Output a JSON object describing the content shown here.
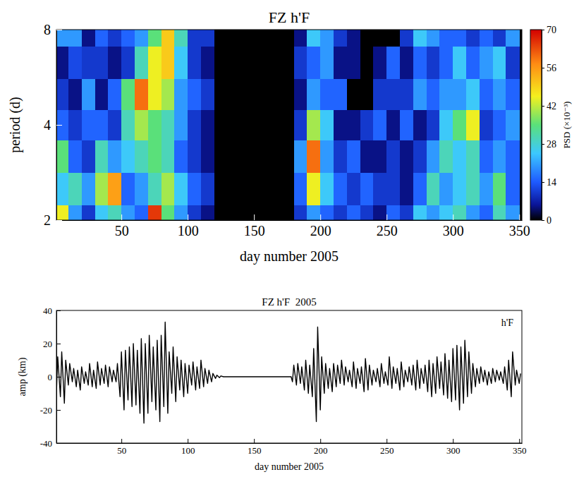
{
  "chart_data": [
    {
      "type": "heatmap",
      "title": "FZ h'F",
      "x_label": "day number 2005",
      "y_label": "period (d)",
      "log": "y",
      "xlim": [
        1,
        352
      ],
      "xticks": [
        50,
        100,
        150,
        200,
        250,
        300,
        350
      ],
      "ylim": [
        2,
        8
      ],
      "yticks": [
        2,
        4,
        8
      ],
      "x": [
        5,
        15,
        25,
        35,
        45,
        55,
        65,
        75,
        85,
        95,
        105,
        115,
        125,
        135,
        145,
        155,
        165,
        175,
        185,
        195,
        205,
        215,
        225,
        235,
        245,
        255,
        265,
        275,
        285,
        295,
        305,
        315,
        325,
        335,
        345
      ],
      "y": [
        2,
        2.5,
        3.2,
        4,
        5,
        6.3,
        8
      ],
      "z": [
        [
          45,
          25,
          35,
          15,
          10,
          5,
          20
        ],
        [
          20,
          30,
          15,
          10,
          5,
          12,
          20
        ],
        [
          10,
          20,
          10,
          15,
          20,
          10,
          5
        ],
        [
          25,
          40,
          30,
          15,
          5,
          10,
          15
        ],
        [
          30,
          55,
          20,
          10,
          15,
          5,
          10
        ],
        [
          20,
          15,
          25,
          30,
          35,
          10,
          15
        ],
        [
          15,
          20,
          30,
          40,
          60,
          30,
          20
        ],
        [
          65,
          30,
          35,
          35,
          45,
          45,
          35
        ],
        [
          35,
          40,
          30,
          30,
          40,
          50,
          50
        ],
        [
          20,
          25,
          15,
          20,
          20,
          25,
          30
        ],
        [
          10,
          15,
          10,
          10,
          15,
          10,
          10
        ],
        [
          5,
          10,
          5,
          5,
          10,
          5,
          10
        ],
        [
          0,
          0,
          0,
          0,
          0,
          0,
          0
        ],
        [
          0,
          0,
          0,
          0,
          0,
          0,
          0
        ],
        [
          0,
          0,
          0,
          0,
          0,
          0,
          0
        ],
        [
          0,
          0,
          0,
          0,
          0,
          0,
          0
        ],
        [
          0,
          0,
          0,
          0,
          0,
          0,
          0
        ],
        [
          0,
          0,
          0,
          0,
          0,
          0,
          0
        ],
        [
          10,
          15,
          20,
          10,
          5,
          10,
          5
        ],
        [
          20,
          45,
          60,
          40,
          20,
          15,
          25
        ],
        [
          15,
          25,
          20,
          25,
          15,
          20,
          20
        ],
        [
          10,
          15,
          10,
          5,
          15,
          5,
          10
        ],
        [
          15,
          10,
          15,
          5,
          0,
          5,
          5
        ],
        [
          10,
          15,
          5,
          10,
          0,
          0,
          0
        ],
        [
          5,
          10,
          5,
          15,
          10,
          5,
          0
        ],
        [
          15,
          10,
          10,
          5,
          10,
          15,
          0
        ],
        [
          10,
          5,
          5,
          15,
          10,
          5,
          10
        ],
        [
          25,
          15,
          10,
          5,
          20,
          15,
          25
        ],
        [
          20,
          30,
          20,
          10,
          15,
          10,
          20
        ],
        [
          25,
          20,
          30,
          25,
          20,
          15,
          15
        ],
        [
          30,
          25,
          25,
          35,
          20,
          25,
          15
        ],
        [
          20,
          30,
          30,
          45,
          25,
          15,
          10
        ],
        [
          15,
          20,
          15,
          10,
          15,
          20,
          15
        ],
        [
          30,
          35,
          20,
          15,
          20,
          25,
          10
        ],
        [
          20,
          15,
          15,
          20,
          15,
          10,
          20
        ]
      ],
      "zlim": [
        0,
        70
      ],
      "zticks": [
        0,
        14,
        28,
        42,
        56,
        70
      ],
      "zlabel": "PSD (×10⁻³)"
    },
    {
      "type": "line",
      "title": "FZ h'F  2005",
      "x_label": "day number 2005",
      "y_label": "amp (km)",
      "annotation": "h'F",
      "color": "#000000",
      "xlim": [
        1,
        352
      ],
      "xticks": [
        50,
        100,
        150,
        200,
        250,
        300,
        350
      ],
      "ylim": [
        -40,
        40
      ],
      "yticks": [
        -40,
        -20,
        0,
        20,
        40
      ],
      "x": [
        1,
        2,
        4,
        5,
        7,
        8,
        10,
        11,
        13,
        14,
        16,
        17,
        19,
        20,
        22,
        23,
        25,
        26,
        28,
        29,
        31,
        32,
        34,
        35,
        37,
        38,
        40,
        41,
        43,
        44,
        46,
        47,
        49,
        50,
        52,
        53,
        55,
        56,
        58,
        59,
        61,
        62,
        64,
        65,
        67,
        68,
        70,
        71,
        73,
        74,
        76,
        77,
        79,
        80,
        82,
        83,
        85,
        86,
        88,
        89,
        91,
        92,
        94,
        95,
        97,
        98,
        100,
        101,
        103,
        104,
        106,
        107,
        109,
        110,
        112,
        113,
        115,
        116,
        118,
        119,
        121,
        122,
        124,
        125,
        127,
        178,
        179,
        180,
        182,
        183,
        185,
        186,
        188,
        189,
        191,
        192,
        194,
        195,
        197,
        198,
        200,
        201,
        203,
        204,
        206,
        207,
        209,
        210,
        212,
        213,
        215,
        216,
        218,
        219,
        221,
        222,
        224,
        225,
        227,
        228,
        230,
        231,
        233,
        234,
        236,
        237,
        239,
        240,
        242,
        243,
        245,
        246,
        248,
        249,
        251,
        252,
        254,
        255,
        257,
        258,
        260,
        261,
        263,
        264,
        266,
        267,
        269,
        270,
        272,
        273,
        275,
        276,
        278,
        279,
        281,
        282,
        284,
        285,
        287,
        288,
        290,
        291,
        293,
        294,
        296,
        297,
        299,
        300,
        302,
        303,
        305,
        306,
        308,
        309,
        311,
        312,
        314,
        315,
        317,
        318,
        320,
        321,
        323,
        324,
        326,
        327,
        329,
        330,
        332,
        333,
        335,
        336,
        338,
        339,
        341,
        342,
        344,
        345,
        347,
        348,
        350,
        351
      ],
      "values": [
        -10,
        12,
        -12,
        15,
        -16,
        10,
        -5,
        8,
        -3,
        5,
        -6,
        4,
        -8,
        6,
        -4,
        3,
        -5,
        8,
        -6,
        4,
        -7,
        9,
        -5,
        5,
        -4,
        7,
        -6,
        6,
        -3,
        4,
        -3,
        8,
        -12,
        15,
        -20,
        16,
        -14,
        18,
        -18,
        20,
        -17,
        16,
        -22,
        23,
        -28,
        20,
        -22,
        25,
        -15,
        18,
        -20,
        22,
        -27,
        25,
        -18,
        33,
        -22,
        15,
        -10,
        18,
        -15,
        12,
        -8,
        10,
        -12,
        8,
        -10,
        7,
        -5,
        9,
        -8,
        6,
        -7,
        10,
        -6,
        5,
        -4,
        4,
        -3,
        2,
        -1,
        1,
        -0.5,
        0.5,
        0,
        0,
        -3,
        7,
        -5,
        8,
        -4,
        6,
        -8,
        10,
        -10,
        7,
        -12,
        17,
        -27,
        30,
        -20,
        12,
        -10,
        8,
        -7,
        5,
        -9,
        8,
        -6,
        7,
        -4,
        10,
        -5,
        6,
        -3,
        4,
        -6,
        9,
        -7,
        5,
        -4,
        6,
        -9,
        11,
        -8,
        7,
        -5,
        4,
        -3,
        5,
        -6,
        8,
        -4,
        3,
        -5,
        12,
        -7,
        6,
        -4,
        5,
        -8,
        9,
        -6,
        4,
        -3,
        6,
        -5,
        7,
        -8,
        10,
        -7,
        5,
        -4,
        7,
        -9,
        10,
        -12,
        8,
        -10,
        12,
        -7,
        9,
        -11,
        14,
        -13,
        10,
        -15,
        17,
        -14,
        19,
        -20,
        18,
        -16,
        22,
        -12,
        15,
        -10,
        8,
        -6,
        5,
        -4,
        6,
        -3,
        4,
        -5,
        3,
        -4,
        5,
        -3,
        4,
        -2,
        3,
        -4,
        6,
        -8,
        10,
        -12,
        15,
        -5,
        4,
        -4,
        2
      ]
    }
  ]
}
